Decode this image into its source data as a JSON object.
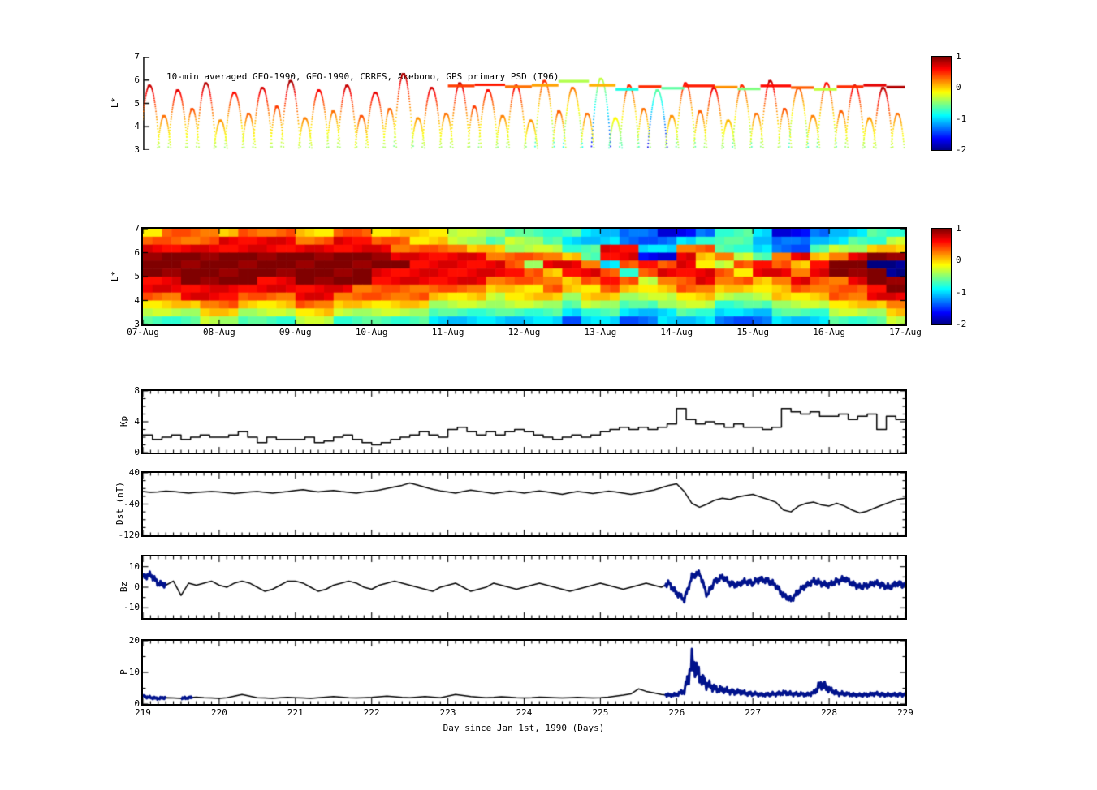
{
  "title": "10-min averaged GEO-1990, GEO-1990, CRRES, Akebono, GPS  primary PSD (T96)",
  "colors": {
    "line": "#000000",
    "overlay": "#00128c",
    "background": "#ffffff"
  },
  "colorbar": {
    "min": -2,
    "max": 1,
    "ticks": [
      1,
      0,
      -1,
      -2
    ]
  },
  "xaxis": {
    "label": "Day since Jan 1st, 1990 (Days)",
    "ticks": [
      219,
      220,
      221,
      222,
      223,
      224,
      225,
      226,
      227,
      228,
      229
    ],
    "range": [
      219,
      229
    ]
  },
  "chart_data": [
    {
      "type": "scatter",
      "name": "satellite-psd-tracks",
      "title": "10-min averaged GEO-1990, GEO-1990, CRRES, Akebono, GPS  primary PSD (T96)",
      "ylabel": "L*",
      "ylim": [
        3,
        7
      ],
      "yticks": [
        7,
        6,
        5,
        4,
        3
      ],
      "xlim_days": [
        219,
        229
      ],
      "arcs": [
        [
          0.08,
          5.8,
          0.8
        ],
        [
          0.45,
          5.6,
          0.7
        ],
        [
          0.82,
          5.9,
          0.85
        ],
        [
          1.19,
          5.5,
          0.6
        ],
        [
          1.56,
          5.7,
          0.75
        ],
        [
          1.93,
          6.0,
          0.9
        ],
        [
          2.3,
          5.6,
          0.65
        ],
        [
          2.67,
          5.8,
          0.8
        ],
        [
          3.04,
          5.5,
          0.7
        ],
        [
          3.41,
          6.3,
          0.85
        ],
        [
          3.78,
          5.7,
          0.75
        ],
        [
          4.15,
          5.9,
          0.8
        ],
        [
          4.52,
          5.6,
          0.6
        ],
        [
          4.89,
          5.8,
          0.7
        ],
        [
          5.26,
          6.0,
          0.5
        ],
        [
          5.63,
          5.7,
          0.3
        ],
        [
          6.0,
          6.1,
          -0.3
        ],
        [
          6.37,
          5.8,
          0.5
        ],
        [
          6.74,
          5.6,
          -0.6
        ],
        [
          7.11,
          5.9,
          0.6
        ],
        [
          7.48,
          5.7,
          0.7
        ],
        [
          7.85,
          5.8,
          0.5
        ],
        [
          8.22,
          6.0,
          0.8
        ],
        [
          8.59,
          5.7,
          0.4
        ],
        [
          8.96,
          5.9,
          0.6
        ],
        [
          9.33,
          5.8,
          0.75
        ],
        [
          9.7,
          5.7,
          0.85
        ]
      ],
      "minor_arcs": [
        [
          0.27,
          4.5,
          0.3
        ],
        [
          0.64,
          4.8,
          0.4
        ],
        [
          1.01,
          4.3,
          0.2
        ],
        [
          1.38,
          4.6,
          0.35
        ],
        [
          1.75,
          4.9,
          0.45
        ],
        [
          2.12,
          4.4,
          0.25
        ],
        [
          2.49,
          4.7,
          0.3
        ],
        [
          2.86,
          4.5,
          0.4
        ],
        [
          3.23,
          4.8,
          0.35
        ],
        [
          3.6,
          4.4,
          0.2
        ],
        [
          3.97,
          4.6,
          0.3
        ],
        [
          4.34,
          4.9,
          0.45
        ],
        [
          4.71,
          4.5,
          0.25
        ],
        [
          5.08,
          4.3,
          0.2
        ],
        [
          5.45,
          4.7,
          0.35
        ],
        [
          5.82,
          4.6,
          0.3
        ],
        [
          6.19,
          4.4,
          -0.1
        ],
        [
          6.56,
          4.8,
          0.3
        ],
        [
          6.93,
          4.5,
          0.2
        ],
        [
          7.3,
          4.7,
          0.35
        ],
        [
          7.67,
          4.3,
          0.1
        ],
        [
          8.04,
          4.6,
          0.3
        ],
        [
          8.41,
          4.8,
          0.4
        ],
        [
          8.78,
          4.5,
          0.25
        ],
        [
          9.15,
          4.7,
          0.35
        ],
        [
          9.52,
          4.4,
          0.2
        ],
        [
          9.89,
          4.6,
          0.3
        ]
      ],
      "geo_segments": [
        [
          4.0,
          4.35,
          5.75,
          0.45
        ],
        [
          4.35,
          4.75,
          5.8,
          0.55
        ],
        [
          4.75,
          5.1,
          5.72,
          0.3
        ],
        [
          5.1,
          5.45,
          5.78,
          0.15
        ],
        [
          5.45,
          5.85,
          5.95,
          -0.35
        ],
        [
          5.85,
          6.2,
          5.78,
          0.1
        ],
        [
          6.2,
          6.5,
          5.6,
          -0.8
        ],
        [
          6.5,
          6.8,
          5.72,
          0.5
        ],
        [
          6.8,
          7.1,
          5.65,
          -0.6
        ],
        [
          7.1,
          7.5,
          5.75,
          0.55
        ],
        [
          7.5,
          7.8,
          5.7,
          0.2
        ],
        [
          7.8,
          8.1,
          5.62,
          -0.5
        ],
        [
          8.1,
          8.5,
          5.75,
          0.6
        ],
        [
          8.5,
          8.8,
          5.68,
          0.35
        ],
        [
          8.8,
          9.1,
          5.6,
          -0.3
        ],
        [
          9.1,
          9.45,
          5.72,
          0.5
        ],
        [
          9.45,
          9.75,
          5.78,
          0.7
        ],
        [
          9.75,
          10.0,
          5.7,
          0.85
        ]
      ]
    },
    {
      "type": "heatmap",
      "name": "psd-spectrogram",
      "ylabel": "L*",
      "ylim": [
        3,
        7
      ],
      "yticks": [
        7,
        6,
        5,
        4,
        3
      ],
      "xticklabels": [
        "07-Aug",
        "08-Aug",
        "09-Aug",
        "10-Aug",
        "11-Aug",
        "12-Aug",
        "13-Aug",
        "14-Aug",
        "15-Aug",
        "16-Aug",
        "17-Aug"
      ],
      "value_scale": {
        "char0": -2,
        "char9": 1
      },
      "grid": [
        "6777677766776666555444433221124431123344",
        "7777888877887766554554333222344432233445",
        "8888888888888777766555448833774432245566",
        "9999999999999888887777648811867547867899",
        "9999999999999988888758873787865787689900",
        "9999999999998888888876887478887688789990",
        "8899998899998888887777678757787767877899",
        "8888888888877777776667667666776666777789",
        "7788877788777776665666566555665556667788",
        "6667766677666665555555455445554445556667",
        "5556655566555554444444344333443334445556",
        "4445544455444443333333233223332223334445"
      ]
    },
    {
      "type": "line",
      "name": "Kp",
      "ylabel": "Kp",
      "ylim": [
        0,
        8
      ],
      "yticks": [
        8,
        4,
        0
      ],
      "yticks_minor": [
        1,
        2,
        3,
        5,
        6,
        7
      ],
      "step": 0.125,
      "values": [
        2.3,
        1.7,
        2.0,
        2.3,
        1.7,
        2.0,
        2.3,
        2.0,
        2.0,
        2.3,
        2.7,
        2.0,
        1.3,
        2.0,
        1.7,
        1.7,
        1.7,
        2.0,
        1.3,
        1.5,
        2.0,
        2.3,
        1.7,
        1.3,
        1.0,
        1.3,
        1.7,
        2.0,
        2.3,
        2.7,
        2.3,
        2.0,
        3.0,
        3.3,
        2.7,
        2.3,
        2.7,
        2.3,
        2.7,
        3.0,
        2.7,
        2.3,
        2.0,
        1.7,
        2.0,
        2.3,
        2.0,
        2.3,
        2.7,
        3.0,
        3.3,
        3.0,
        3.3,
        3.0,
        3.3,
        3.7,
        5.7,
        4.3,
        3.7,
        4.0,
        3.7,
        3.3,
        3.7,
        3.3,
        3.3,
        3.0,
        3.3,
        5.7,
        5.3,
        5.0,
        5.3,
        4.7,
        4.7,
        5.0,
        4.3,
        4.7,
        5.0,
        3.0,
        4.7,
        4.3
      ]
    },
    {
      "type": "line",
      "name": "Dst",
      "ylabel": "Dst (nT)",
      "ylim": [
        -120,
        40
      ],
      "yticks": [
        40,
        -40,
        -120
      ],
      "yticks_minor": [
        20,
        0,
        -20,
        -60,
        -80,
        -100
      ],
      "dx": 0.1,
      "values": [
        -8,
        -10,
        -9,
        -7,
        -8,
        -10,
        -12,
        -10,
        -9,
        -8,
        -9,
        -11,
        -13,
        -11,
        -9,
        -8,
        -10,
        -12,
        -10,
        -8,
        -5,
        -3,
        -6,
        -9,
        -7,
        -5,
        -8,
        -10,
        -12,
        -9,
        -7,
        -4,
        0,
        4,
        8,
        14,
        9,
        3,
        -2,
        -6,
        -9,
        -12,
        -8,
        -4,
        -7,
        -10,
        -13,
        -10,
        -7,
        -9,
        -12,
        -9,
        -6,
        -9,
        -12,
        -15,
        -11,
        -8,
        -10,
        -13,
        -10,
        -7,
        -9,
        -12,
        -15,
        -12,
        -8,
        -4,
        2,
        8,
        12,
        -8,
        -38,
        -48,
        -40,
        -30,
        -25,
        -28,
        -22,
        -18,
        -15,
        -22,
        -28,
        -35,
        -55,
        -60,
        -45,
        -38,
        -35,
        -42,
        -45,
        -38,
        -45,
        -55,
        -63,
        -58,
        -50,
        -42,
        -35,
        -28,
        -25
      ]
    },
    {
      "type": "line",
      "name": "Bz",
      "ylabel": "Bz",
      "ylim": [
        -15,
        15
      ],
      "yticks": [
        10,
        0,
        -10
      ],
      "yticks_minor": [
        5,
        -5
      ],
      "dx": 0.1,
      "jitter": 1.1,
      "jitter_scale": 0,
      "overlay_ranges": [
        [
          219.0,
          219.3
        ],
        [
          225.85,
          229.0
        ]
      ],
      "values": [
        5,
        6,
        2,
        1,
        3,
        -4,
        2,
        1,
        2,
        3,
        1,
        0,
        2,
        3,
        2,
        0,
        -2,
        -1,
        1,
        3,
        3,
        2,
        0,
        -2,
        -1,
        1,
        2,
        3,
        2,
        0,
        -1,
        1,
        2,
        3,
        2,
        1,
        0,
        -1,
        -2,
        0,
        1,
        2,
        0,
        -2,
        -1,
        0,
        2,
        1,
        0,
        -1,
        0,
        1,
        2,
        1,
        0,
        -1,
        -2,
        -1,
        0,
        1,
        2,
        1,
        0,
        -1,
        0,
        1,
        2,
        1,
        0,
        2,
        -3,
        -6,
        5,
        7,
        -4,
        3,
        5,
        2,
        1,
        3,
        2,
        4,
        3,
        1,
        -4,
        -6,
        -2,
        1,
        3,
        2,
        1,
        3,
        4,
        2,
        0,
        1,
        2,
        1,
        0,
        2,
        1
      ]
    },
    {
      "type": "line",
      "name": "P",
      "ylabel": "P",
      "ylim": [
        0,
        20
      ],
      "yticks": [
        20,
        10,
        0
      ],
      "yticks_minor": [
        5,
        15
      ],
      "dx": 0.1,
      "jitter": 0.3,
      "jitter_scale": 0.25,
      "overlay_ranges": [
        [
          219.0,
          219.3
        ],
        [
          219.5,
          219.65
        ],
        [
          225.85,
          229.0
        ]
      ],
      "values": [
        2.5,
        2,
        1.8,
        2,
        1.9,
        1.8,
        2,
        2.2,
        2,
        1.9,
        1.8,
        2,
        2.5,
        3,
        2.5,
        2,
        1.9,
        1.8,
        2,
        2.1,
        2,
        1.9,
        1.8,
        2,
        2.2,
        2.4,
        2.2,
        2,
        1.9,
        2,
        2.1,
        2.3,
        2.5,
        2.3,
        2.1,
        2,
        2.2,
        2.4,
        2.2,
        2,
        2.5,
        3,
        2.7,
        2.4,
        2.2,
        2,
        2.1,
        2.3,
        2.2,
        2,
        1.9,
        2,
        2.2,
        2.1,
        2,
        1.9,
        2,
        2.1,
        2,
        1.9,
        2,
        2.2,
        2.5,
        2.8,
        3.2,
        4.8,
        4,
        3.5,
        3,
        2.8,
        3,
        4,
        13,
        9,
        6,
        5,
        4.5,
        4,
        3.8,
        3.5,
        3.2,
        3,
        3,
        3.2,
        3.5,
        3.3,
        3.1,
        3,
        3.5,
        6.5,
        4.5,
        3.5,
        3.2,
        3,
        2.8,
        3,
        3.2,
        3,
        2.9,
        3,
        3
      ]
    }
  ]
}
